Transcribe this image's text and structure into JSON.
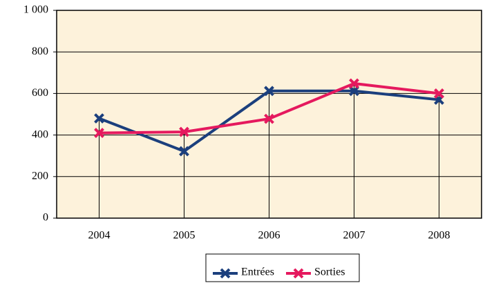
{
  "chart_data": {
    "type": "line",
    "categories": [
      "2004",
      "2005",
      "2006",
      "2007",
      "2008"
    ],
    "series": [
      {
        "name": "Entrées",
        "color": "#1b3f7d",
        "values": [
          480,
          322,
          612,
          612,
          570
        ]
      },
      {
        "name": "Sorties",
        "color": "#e5195e",
        "values": [
          410,
          415,
          478,
          648,
          600
        ]
      }
    ],
    "ylim": [
      0,
      1000
    ],
    "yticks": [
      0,
      200,
      400,
      600,
      800,
      {
        "value": 1000,
        "label": "1 000"
      }
    ],
    "grid": true,
    "background": "#fdf2db"
  }
}
